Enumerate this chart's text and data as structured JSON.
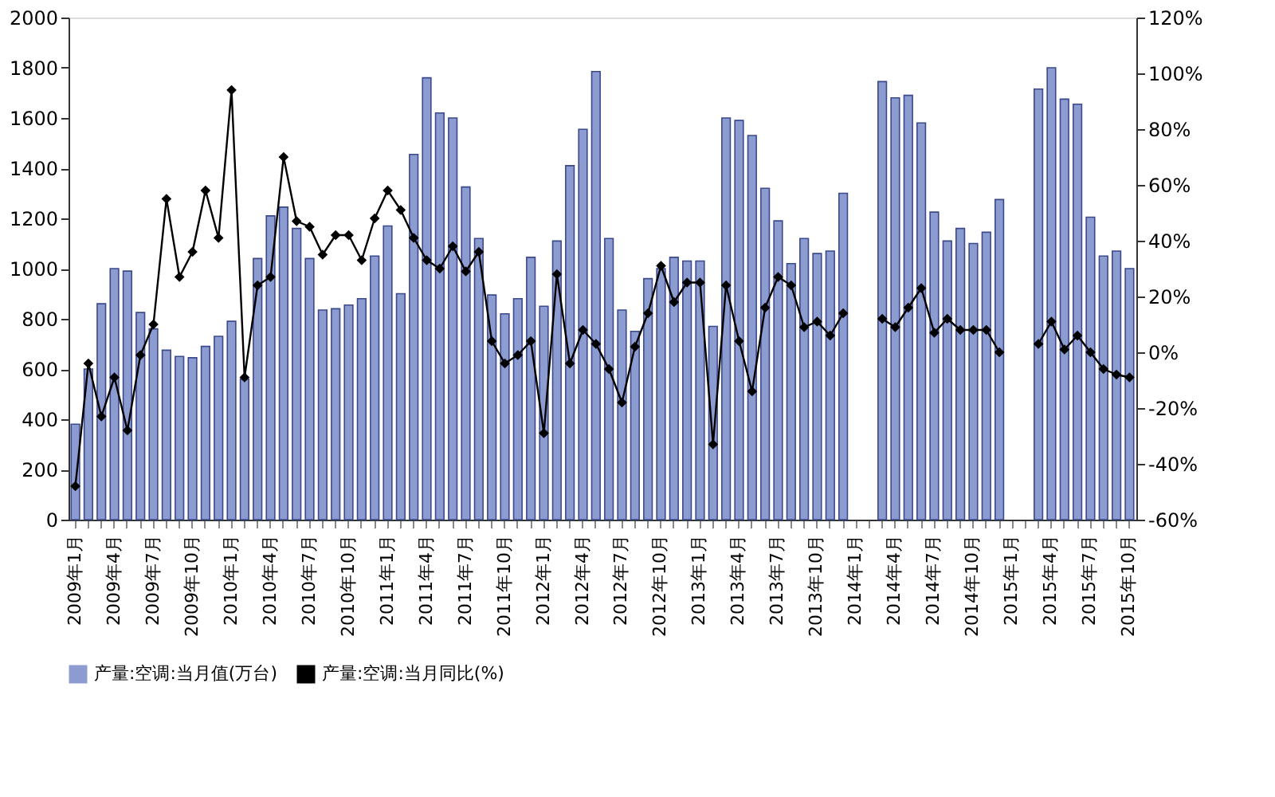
{
  "chart_data": {
    "type": "bar",
    "categories": [
      "2009年1月",
      null,
      null,
      "2009年4月",
      null,
      null,
      "2009年7月",
      null,
      null,
      "2009年10月",
      null,
      null,
      "2010年1月",
      null,
      null,
      "2010年4月",
      null,
      null,
      "2010年7月",
      null,
      null,
      "2010年10月",
      null,
      null,
      "2011年1月",
      null,
      null,
      "2011年4月",
      null,
      null,
      "2011年7月",
      null,
      null,
      "2011年10月",
      null,
      null,
      "2012年1月",
      null,
      null,
      "2012年4月",
      null,
      null,
      "2012年7月",
      null,
      null,
      "2012年10月",
      null,
      null,
      "2013年1月",
      null,
      null,
      "2013年4月",
      null,
      null,
      "2013年7月",
      null,
      null,
      "2013年10月",
      null,
      null,
      "2014年1月",
      null,
      null,
      "2014年4月",
      null,
      null,
      "2014年7月",
      null,
      null,
      "2014年10月",
      null,
      null,
      "2015年1月",
      null,
      null,
      "2015年4月",
      null,
      null,
      "2015年7月",
      null,
      null,
      "2015年10月"
    ],
    "series": [
      {
        "name": "产量:空调:当月值(万台)",
        "color": "#8c9bd0",
        "values": [
          380,
          600,
          860,
          1000,
          990,
          825,
          760,
          675,
          650,
          645,
          690,
          730,
          790,
          560,
          1040,
          1210,
          1245,
          1160,
          1040,
          835,
          840,
          855,
          880,
          1050,
          1170,
          900,
          1455,
          1760,
          1620,
          1600,
          1325,
          1120,
          895,
          820,
          880,
          1045,
          850,
          1110,
          1410,
          1555,
          1785,
          1120,
          835,
          750,
          960,
          1000,
          1045,
          1030,
          1030,
          770,
          1600,
          1590,
          1530,
          1320,
          1190,
          1020,
          1120,
          1060,
          1070,
          1300,
          null,
          null,
          1745,
          1680,
          1690,
          1580,
          1225,
          1110,
          1160,
          1100,
          1145,
          1275,
          null,
          null,
          1715,
          1800,
          1675,
          1655,
          1205,
          1050,
          1070,
          1000
        ]
      },
      {
        "name": "产量:空调:当月同比(%)",
        "type": "line",
        "axis": "y2",
        "color": "#000000",
        "values": [
          -48,
          -4,
          -23,
          -9,
          -28,
          -1,
          10,
          55,
          27,
          36,
          58,
          41,
          94,
          -9,
          24,
          27,
          70,
          47,
          45,
          35,
          42,
          42,
          33,
          48,
          58,
          51,
          41,
          33,
          30,
          38,
          29,
          36,
          4,
          -4,
          -1,
          4,
          -29,
          28,
          -4,
          8,
          3,
          -6,
          -18,
          2,
          14,
          31,
          18,
          25,
          25,
          -33,
          24,
          4,
          -14,
          16,
          27,
          24,
          9,
          11,
          6,
          14,
          null,
          null,
          12,
          9,
          16,
          23,
          7,
          12,
          8,
          8,
          8,
          0,
          null,
          null,
          3,
          11,
          1,
          6,
          0,
          -6,
          -8,
          -9
        ]
      }
    ],
    "ylim": [
      0,
      2000
    ],
    "yticks": [
      0,
      200,
      400,
      600,
      800,
      1000,
      1200,
      1400,
      1600,
      1800,
      2000
    ],
    "y2lim": [
      -60,
      120
    ],
    "y2ticks": [
      {
        "value": -60,
        "label": "-60%"
      },
      {
        "value": -40,
        "label": "-40%"
      },
      {
        "value": -20,
        "label": "-20%"
      },
      {
        "value": 0,
        "label": "0%"
      },
      {
        "value": 20,
        "label": "20%"
      },
      {
        "value": 40,
        "label": "40%"
      },
      {
        "value": 60,
        "label": "60%"
      },
      {
        "value": 80,
        "label": "80%"
      },
      {
        "value": 100,
        "label": "100%"
      },
      {
        "value": 120,
        "label": "120%"
      }
    ],
    "grid": false,
    "legend": "bottom",
    "marker": "diamond",
    "line_style": "solid"
  }
}
